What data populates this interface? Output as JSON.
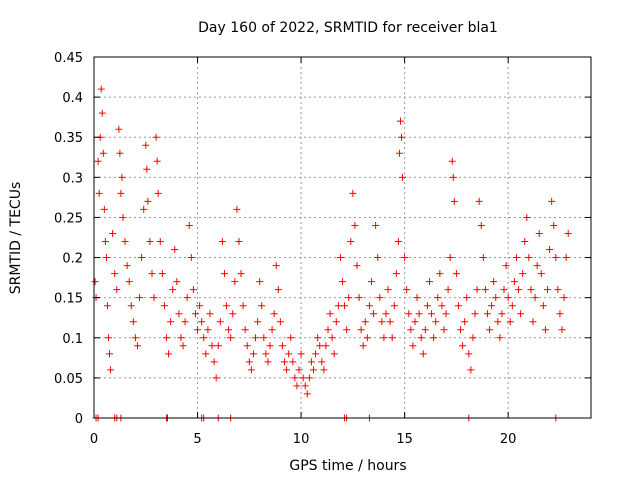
{
  "chart_data": {
    "type": "scatter",
    "title": "Day 160 of 2022, SRMTID for receiver bla1",
    "xlabel": "GPS time / hours",
    "ylabel": "SRMTID / TECUs",
    "xlim": [
      0,
      24
    ],
    "ylim": [
      0,
      0.45
    ],
    "x_ticks": [
      "0",
      "5",
      "10",
      "15",
      "20"
    ],
    "x_tick_values": [
      0,
      5,
      10,
      15,
      20
    ],
    "y_ticks": [
      "0",
      "0.05",
      "0.1",
      "0.15",
      "0.2",
      "0.25",
      "0.3",
      "0.35",
      "0.4",
      "0.45"
    ],
    "y_tick_values": [
      0,
      0.05,
      0.1,
      0.15,
      0.2,
      0.25,
      0.3,
      0.35,
      0.4,
      0.45
    ],
    "grid": true,
    "marker": "+",
    "color": "#ff0000",
    "series": [
      {
        "name": "SRMTID",
        "description": "dense scatter of SRMTID values vs time; higher (~0.1-0.42) near 0-3 h, minimum (~0.02-0.1) near 9-11 h, spikes near 12.5 h (~0.28), 14.8 h (~0.37), 17.3 h (~0.32), rising again 18-23 h (~0.1-0.27)",
        "points": [
          [
            0.05,
            0.17
          ],
          [
            0.1,
            0.15
          ],
          [
            0.2,
            0.32
          ],
          [
            0.25,
            0.28
          ],
          [
            0.3,
            0.35
          ],
          [
            0.35,
            0.41
          ],
          [
            0.4,
            0.38
          ],
          [
            0.45,
            0.33
          ],
          [
            0.5,
            0.26
          ],
          [
            0.55,
            0.22
          ],
          [
            0.6,
            0.2
          ],
          [
            0.65,
            0.14
          ],
          [
            0.7,
            0.1
          ],
          [
            0.75,
            0.08
          ],
          [
            0.8,
            0.06
          ],
          [
            0.9,
            0.23
          ],
          [
            1.0,
            0.18
          ],
          [
            1.1,
            0.16
          ],
          [
            1.2,
            0.36
          ],
          [
            1.25,
            0.33
          ],
          [
            1.3,
            0.28
          ],
          [
            1.35,
            0.3
          ],
          [
            1.4,
            0.25
          ],
          [
            1.5,
            0.22
          ],
          [
            1.6,
            0.19
          ],
          [
            1.7,
            0.17
          ],
          [
            1.8,
            0.14
          ],
          [
            1.9,
            0.12
          ],
          [
            2.0,
            0.1
          ],
          [
            2.1,
            0.09
          ],
          [
            2.2,
            0.15
          ],
          [
            2.3,
            0.2
          ],
          [
            2.4,
            0.26
          ],
          [
            2.5,
            0.34
          ],
          [
            2.55,
            0.31
          ],
          [
            2.6,
            0.27
          ],
          [
            2.7,
            0.22
          ],
          [
            2.8,
            0.18
          ],
          [
            2.9,
            0.15
          ],
          [
            3.0,
            0.35
          ],
          [
            3.05,
            0.32
          ],
          [
            3.1,
            0.28
          ],
          [
            3.2,
            0.22
          ],
          [
            3.3,
            0.18
          ],
          [
            3.4,
            0.14
          ],
          [
            3.5,
            0.1
          ],
          [
            3.6,
            0.08
          ],
          [
            3.7,
            0.12
          ],
          [
            3.8,
            0.16
          ],
          [
            3.9,
            0.21
          ],
          [
            4.0,
            0.17
          ],
          [
            4.1,
            0.13
          ],
          [
            4.2,
            0.1
          ],
          [
            4.3,
            0.09
          ],
          [
            4.4,
            0.12
          ],
          [
            4.5,
            0.15
          ],
          [
            4.6,
            0.24
          ],
          [
            4.7,
            0.2
          ],
          [
            4.8,
            0.16
          ],
          [
            4.9,
            0.13
          ],
          [
            5.0,
            0.11
          ],
          [
            5.1,
            0.14
          ],
          [
            5.2,
            0.12
          ],
          [
            5.3,
            0.1
          ],
          [
            5.4,
            0.08
          ],
          [
            5.5,
            0.11
          ],
          [
            5.6,
            0.13
          ],
          [
            5.7,
            0.09
          ],
          [
            5.8,
            0.07
          ],
          [
            5.9,
            0.05
          ],
          [
            6.0,
            0.09
          ],
          [
            6.1,
            0.12
          ],
          [
            6.2,
            0.22
          ],
          [
            6.3,
            0.18
          ],
          [
            6.4,
            0.14
          ],
          [
            6.5,
            0.11
          ],
          [
            6.6,
            0.1
          ],
          [
            6.7,
            0.13
          ],
          [
            6.8,
            0.17
          ],
          [
            6.9,
            0.26
          ],
          [
            7.0,
            0.22
          ],
          [
            7.1,
            0.18
          ],
          [
            7.2,
            0.14
          ],
          [
            7.3,
            0.11
          ],
          [
            7.4,
            0.09
          ],
          [
            7.5,
            0.07
          ],
          [
            7.6,
            0.06
          ],
          [
            7.7,
            0.08
          ],
          [
            7.8,
            0.1
          ],
          [
            7.9,
            0.12
          ],
          [
            8.0,
            0.17
          ],
          [
            8.1,
            0.14
          ],
          [
            8.2,
            0.1
          ],
          [
            8.3,
            0.08
          ],
          [
            8.4,
            0.07
          ],
          [
            8.5,
            0.09
          ],
          [
            8.6,
            0.11
          ],
          [
            8.7,
            0.13
          ],
          [
            8.8,
            0.19
          ],
          [
            8.9,
            0.16
          ],
          [
            9.0,
            0.12
          ],
          [
            9.1,
            0.09
          ],
          [
            9.2,
            0.07
          ],
          [
            9.3,
            0.06
          ],
          [
            9.4,
            0.08
          ],
          [
            9.5,
            0.1
          ],
          [
            9.6,
            0.07
          ],
          [
            9.7,
            0.05
          ],
          [
            9.8,
            0.04
          ],
          [
            9.9,
            0.06
          ],
          [
            10.0,
            0.08
          ],
          [
            10.1,
            0.05
          ],
          [
            10.2,
            0.04
          ],
          [
            10.3,
            0.03
          ],
          [
            10.4,
            0.05
          ],
          [
            10.5,
            0.07
          ],
          [
            10.6,
            0.06
          ],
          [
            10.7,
            0.08
          ],
          [
            10.8,
            0.1
          ],
          [
            10.9,
            0.09
          ],
          [
            11.0,
            0.07
          ],
          [
            11.1,
            0.06
          ],
          [
            11.2,
            0.09
          ],
          [
            11.3,
            0.11
          ],
          [
            11.4,
            0.13
          ],
          [
            11.5,
            0.1
          ],
          [
            11.6,
            0.08
          ],
          [
            11.7,
            0.12
          ],
          [
            11.8,
            0.14
          ],
          [
            11.9,
            0.2
          ],
          [
            12.0,
            0.17
          ],
          [
            12.1,
            0.14
          ],
          [
            12.2,
            0.11
          ],
          [
            12.3,
            0.15
          ],
          [
            12.4,
            0.22
          ],
          [
            12.5,
            0.28
          ],
          [
            12.6,
            0.24
          ],
          [
            12.7,
            0.19
          ],
          [
            12.8,
            0.15
          ],
          [
            12.9,
            0.11
          ],
          [
            13.0,
            0.09
          ],
          [
            13.1,
            0.12
          ],
          [
            13.2,
            0.1
          ],
          [
            13.3,
            0.14
          ],
          [
            13.4,
            0.17
          ],
          [
            13.5,
            0.13
          ],
          [
            13.6,
            0.24
          ],
          [
            13.7,
            0.2
          ],
          [
            13.8,
            0.15
          ],
          [
            13.9,
            0.12
          ],
          [
            14.0,
            0.1
          ],
          [
            14.1,
            0.13
          ],
          [
            14.2,
            0.16
          ],
          [
            14.3,
            0.12
          ],
          [
            14.4,
            0.1
          ],
          [
            14.5,
            0.14
          ],
          [
            14.6,
            0.18
          ],
          [
            14.7,
            0.22
          ],
          [
            14.75,
            0.33
          ],
          [
            14.8,
            0.37
          ],
          [
            14.85,
            0.35
          ],
          [
            14.9,
            0.3
          ],
          [
            15.0,
            0.2
          ],
          [
            15.1,
            0.16
          ],
          [
            15.2,
            0.13
          ],
          [
            15.3,
            0.11
          ],
          [
            15.4,
            0.09
          ],
          [
            15.5,
            0.12
          ],
          [
            15.6,
            0.15
          ],
          [
            15.7,
            0.13
          ],
          [
            15.8,
            0.1
          ],
          [
            15.9,
            0.08
          ],
          [
            16.0,
            0.11
          ],
          [
            16.1,
            0.14
          ],
          [
            16.2,
            0.17
          ],
          [
            16.3,
            0.13
          ],
          [
            16.4,
            0.1
          ],
          [
            16.5,
            0.12
          ],
          [
            16.6,
            0.15
          ],
          [
            16.7,
            0.18
          ],
          [
            16.8,
            0.14
          ],
          [
            16.9,
            0.11
          ],
          [
            17.0,
            0.13
          ],
          [
            17.1,
            0.16
          ],
          [
            17.2,
            0.2
          ],
          [
            17.3,
            0.32
          ],
          [
            17.35,
            0.3
          ],
          [
            17.4,
            0.27
          ],
          [
            17.5,
            0.18
          ],
          [
            17.6,
            0.14
          ],
          [
            17.7,
            0.11
          ],
          [
            17.8,
            0.09
          ],
          [
            17.9,
            0.12
          ],
          [
            18.0,
            0.15
          ],
          [
            18.1,
            0.08
          ],
          [
            18.2,
            0.06
          ],
          [
            18.3,
            0.1
          ],
          [
            18.4,
            0.13
          ],
          [
            18.5,
            0.16
          ],
          [
            18.6,
            0.27
          ],
          [
            18.7,
            0.24
          ],
          [
            18.8,
            0.2
          ],
          [
            18.9,
            0.16
          ],
          [
            19.0,
            0.13
          ],
          [
            19.1,
            0.11
          ],
          [
            19.2,
            0.14
          ],
          [
            19.3,
            0.17
          ],
          [
            19.4,
            0.15
          ],
          [
            19.5,
            0.12
          ],
          [
            19.6,
            0.1
          ],
          [
            19.7,
            0.13
          ],
          [
            19.8,
            0.16
          ],
          [
            19.9,
            0.19
          ],
          [
            20.0,
            0.15
          ],
          [
            20.1,
            0.12
          ],
          [
            20.2,
            0.14
          ],
          [
            20.3,
            0.17
          ],
          [
            20.4,
            0.2
          ],
          [
            20.5,
            0.16
          ],
          [
            20.6,
            0.13
          ],
          [
            20.7,
            0.18
          ],
          [
            20.8,
            0.22
          ],
          [
            20.9,
            0.25
          ],
          [
            21.0,
            0.2
          ],
          [
            21.1,
            0.16
          ],
          [
            21.2,
            0.12
          ],
          [
            21.3,
            0.15
          ],
          [
            21.4,
            0.19
          ],
          [
            21.5,
            0.23
          ],
          [
            21.6,
            0.18
          ],
          [
            21.7,
            0.14
          ],
          [
            21.8,
            0.11
          ],
          [
            21.9,
            0.16
          ],
          [
            22.0,
            0.21
          ],
          [
            22.1,
            0.27
          ],
          [
            22.2,
            0.24
          ],
          [
            22.3,
            0.2
          ],
          [
            22.4,
            0.16
          ],
          [
            22.5,
            0.13
          ],
          [
            22.6,
            0.11
          ],
          [
            22.7,
            0.15
          ],
          [
            22.8,
            0.2
          ],
          [
            22.9,
            0.23
          ]
        ]
      },
      {
        "name": "zero markers",
        "points": [
          [
            0.1,
            0
          ],
          [
            0.2,
            0
          ],
          [
            1.0,
            0
          ],
          [
            1.1,
            0
          ],
          [
            1.3,
            0
          ],
          [
            3.5,
            0
          ],
          [
            3.55,
            0
          ],
          [
            5.2,
            0
          ],
          [
            5.3,
            0
          ],
          [
            6.0,
            0
          ],
          [
            6.6,
            0
          ],
          [
            12.1,
            0
          ],
          [
            12.2,
            0
          ],
          [
            13.3,
            0
          ],
          [
            18.1,
            0
          ],
          [
            22.3,
            0
          ]
        ]
      }
    ]
  }
}
